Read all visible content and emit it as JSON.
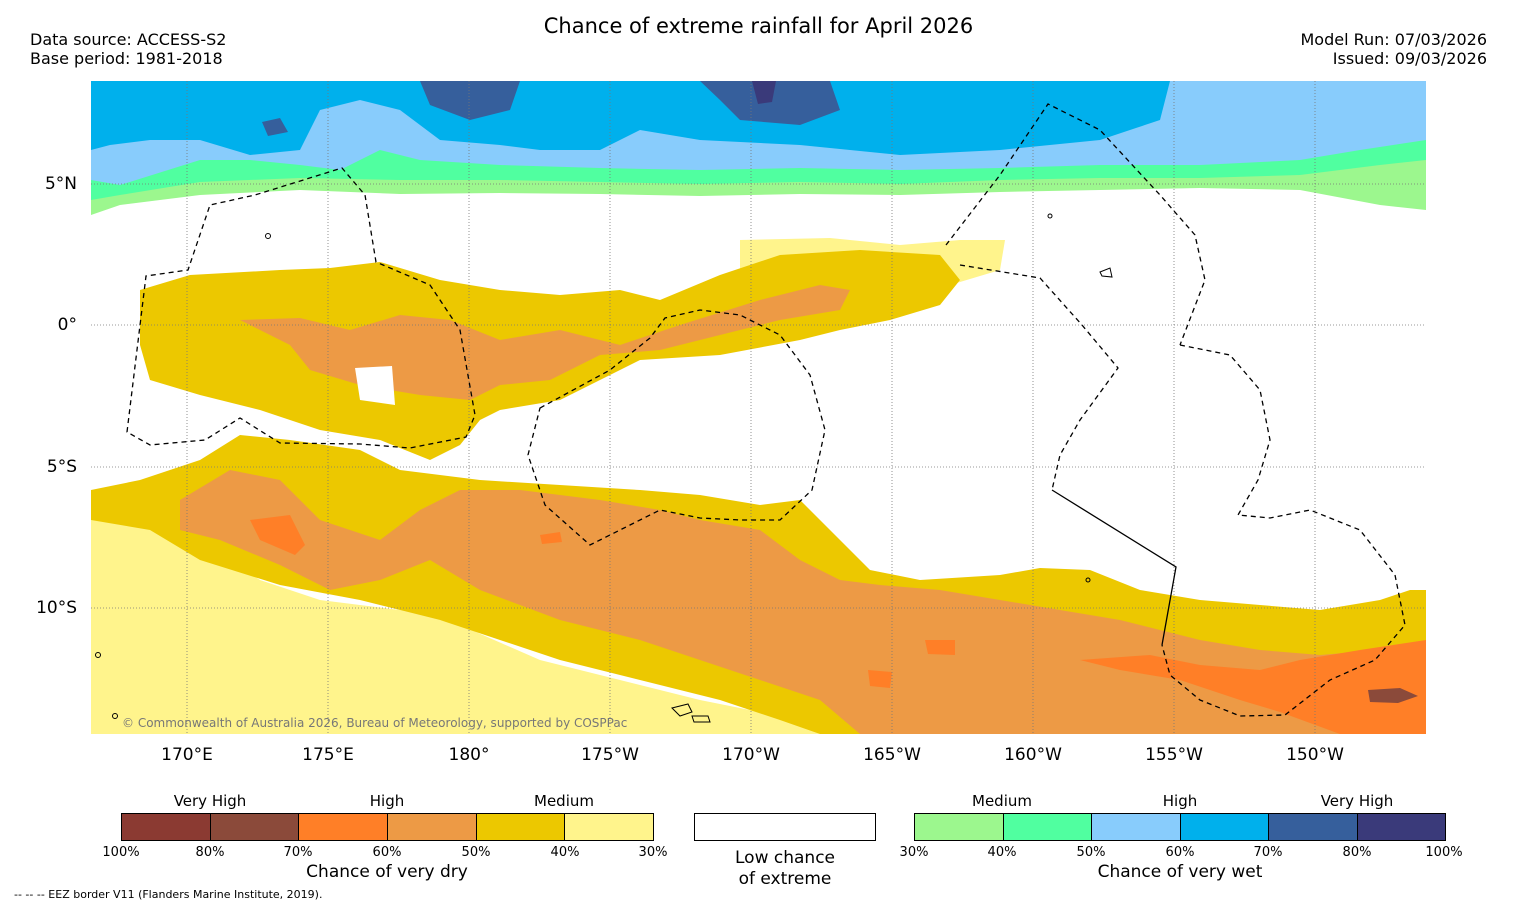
{
  "header": {
    "title": "Chance of extreme rainfall for April 2026",
    "data_source": "Data source: ACCESS-S2",
    "base_period": "Base period: 1981-2018",
    "model_run": "Model Run: 07/03/2026",
    "issued": "Issued: 09/03/2026"
  },
  "map": {
    "latitude_labels": [
      "5°N",
      "0°",
      "5°S",
      "10°S"
    ],
    "longitude_labels": [
      "170°E",
      "175°E",
      "180°",
      "175°W",
      "170°W",
      "165°W",
      "160°W",
      "155°W",
      "150°W"
    ],
    "copyright": "© Commonwealth of Australia 2026, Bureau of Meteorology, supported by COSPPac"
  },
  "colors": {
    "dry": [
      "#8b3a32",
      "#8b4a3a",
      "#ff7f27",
      "#ed9a45",
      "#ecc800",
      "#fff48c"
    ],
    "wet": [
      "#9cf78e",
      "#50ffa0",
      "#88ccfc",
      "#00b0ec",
      "#365f9c",
      "#3a3a7a"
    ],
    "low": "#ffffff"
  },
  "legend": {
    "dry": {
      "categories": [
        "Very High",
        "High",
        "Medium"
      ],
      "ticks": [
        "100%",
        "80%",
        "70%",
        "60%",
        "50%",
        "40%",
        "30%"
      ],
      "label": "Chance of very dry"
    },
    "low": {
      "line1": "Low chance",
      "line2": "of extreme"
    },
    "wet": {
      "categories": [
        "Medium",
        "High",
        "Very High"
      ],
      "ticks": [
        "30%",
        "40%",
        "50%",
        "60%",
        "70%",
        "80%",
        "100%"
      ],
      "label": "Chance of very wet"
    }
  },
  "footnote": "--  --  -- EEZ border V11 (Flanders Marine Institute, 2019)."
}
